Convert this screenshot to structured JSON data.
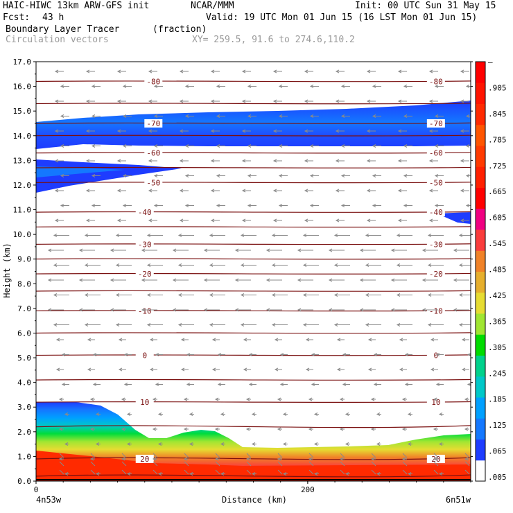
{
  "header": {
    "model": "HAIC-HIWC 13km ARW-GFS init",
    "org": "NCAR/MMM",
    "init": "Init: 00 UTC Sun 31 May 15",
    "fcst_label": "Fcst:",
    "fcst_value": "43 h",
    "valid": "Valid: 19 UTC Mon 01 Jun 15 (16 LST Mon 01 Jun 15)",
    "field": "Boundary Layer Tracer",
    "field_units": "(fraction)",
    "vectors": "Circulation vectors",
    "xy": "XY= 259.5, 91.6 to 274.6,110.2"
  },
  "chart_data": {
    "type": "heatmap",
    "xlabel": "Distance (km)",
    "ylabel": "Height (km)",
    "xlim": [
      0,
      320
    ],
    "ylim": [
      0,
      17
    ],
    "x_ticks": [
      {
        "v": 0,
        "label": "0"
      },
      {
        "v": 200,
        "label": "200"
      }
    ],
    "x_end_labels": {
      "left": "4n53w",
      "right": "6n51w"
    },
    "y_ticks": [
      "0.0",
      "1.0",
      "2.0",
      "3.0",
      "4.0",
      "5.0",
      "6.0",
      "7.0",
      "8.0",
      "9.0",
      "10.0",
      "11.0",
      "12.0",
      "13.0",
      "14.0",
      "15.0",
      "16.0",
      "17.0"
    ],
    "colorbar": {
      "labels": [
        ".005",
        ".065",
        ".125",
        ".185",
        ".245",
        ".305",
        ".365",
        ".425",
        ".485",
        ".545",
        ".605",
        ".665",
        ".725",
        ".785",
        ".845",
        ".905",
        "–"
      ],
      "colors": [
        "#ffffff",
        "#1e3cff",
        "#1478ff",
        "#00a0ff",
        "#00c8c8",
        "#00d28c",
        "#00dc00",
        "#a0e632",
        "#e6dc32",
        "#e6af2d",
        "#f08228",
        "#fa3c3c",
        "#f00082",
        "#ff0000",
        "#ff2000",
        "#ff3a00",
        "#ff5500",
        "#ff2a00",
        "#ff1400",
        "#ff0000"
      ]
    },
    "isotherms": [
      {
        "y": 0.2,
        "label": ""
      },
      {
        "y": 0.9,
        "label": "20"
      },
      {
        "y": 2.2,
        "label": ""
      },
      {
        "y": 3.2,
        "label": "10"
      },
      {
        "y": 4.1,
        "label": ""
      },
      {
        "y": 5.1,
        "label": "0"
      },
      {
        "y": 6.0,
        "label": ""
      },
      {
        "y": 6.9,
        "label": "-10"
      },
      {
        "y": 7.7,
        "label": ""
      },
      {
        "y": 8.4,
        "label": "-20"
      },
      {
        "y": 9.0,
        "label": ""
      },
      {
        "y": 9.6,
        "label": "-30"
      },
      {
        "y": 10.3,
        "label": ""
      },
      {
        "y": 10.9,
        "label": "-40"
      },
      {
        "y": 12.1,
        "label": "-50"
      },
      {
        "y": 12.7,
        "label": ""
      },
      {
        "y": 13.3,
        "label": "-60"
      },
      {
        "y": 14.0,
        "label": ""
      },
      {
        "y": 14.5,
        "label": "-70"
      },
      {
        "y": 15.3,
        "label": ""
      },
      {
        "y": 16.2,
        "label": "-80"
      }
    ]
  }
}
